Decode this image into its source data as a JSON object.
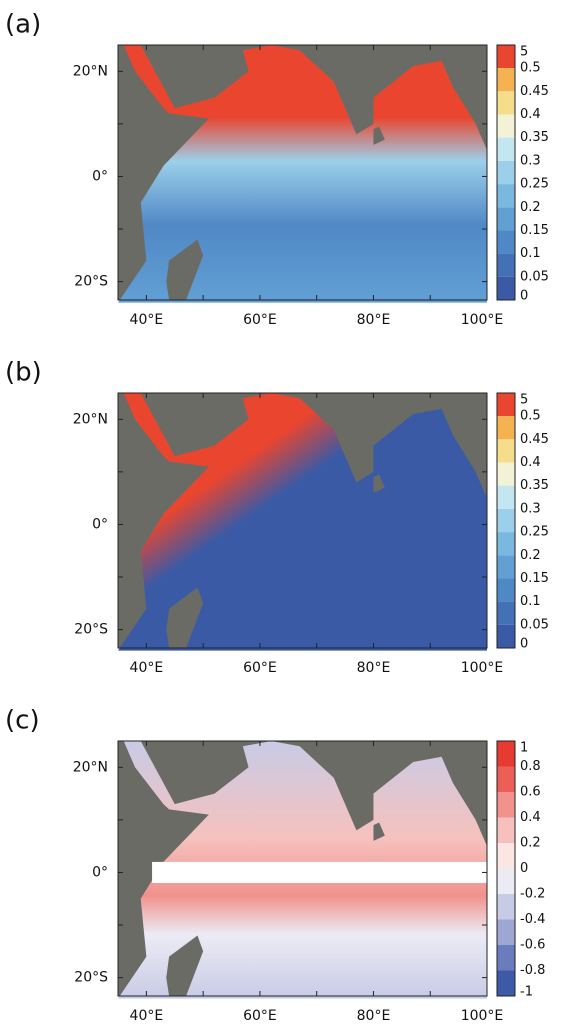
{
  "panels": [
    {
      "label": "(a)",
      "lat_labels": [
        "20°N",
        "0°",
        "20°S"
      ],
      "lon_labels": [
        "40°E",
        "60°E",
        "80°E",
        "100°E"
      ],
      "colorbar": {
        "labels": [
          "5",
          "0.5",
          "0.45",
          "0.4",
          "0.35",
          "0.3",
          "0.25",
          "0.2",
          "0.15",
          "0.1",
          "0.05",
          "0"
        ],
        "colors": [
          "#e9452f",
          "#f4b251",
          "#f6dd8c",
          "#f2f2d6",
          "#c4e6f1",
          "#9cd0ea",
          "#7ab8e0",
          "#62a0d4",
          "#5088c6",
          "#4470b6",
          "#3a5aa6"
        ]
      }
    },
    {
      "label": "(b)",
      "lat_labels": [
        "20°N",
        "0°",
        "20°S"
      ],
      "lon_labels": [
        "40°E",
        "60°E",
        "80°E",
        "100°E"
      ],
      "colorbar": {
        "labels": [
          "5",
          "0.5",
          "0.45",
          "0.4",
          "0.35",
          "0.3",
          "0.25",
          "0.2",
          "0.15",
          "0.1",
          "0.05",
          "0"
        ],
        "colors": [
          "#e9452f",
          "#f4b251",
          "#f6dd8c",
          "#f2f2d6",
          "#c4e6f1",
          "#9cd0ea",
          "#7ab8e0",
          "#62a0d4",
          "#5088c6",
          "#4470b6",
          "#3a5aa6"
        ]
      }
    },
    {
      "label": "(c)",
      "lat_labels": [
        "20°N",
        "0°",
        "20°S"
      ],
      "lon_labels": [
        "40°E",
        "60°E",
        "80°E",
        "100°E"
      ],
      "colorbar": {
        "labels": [
          "1",
          "0.8",
          "0.6",
          "0.4",
          "0.2",
          "0",
          "-0.2",
          "-0.4",
          "-0.6",
          "-0.8",
          "-1"
        ],
        "colors": [
          "#e63a33",
          "#ec5f57",
          "#f1928c",
          "#f6c1bd",
          "#fbe6e4",
          "#ecebf5",
          "#c8cbe6",
          "#9ea6d4",
          "#6b7cbd",
          "#3c5aa6"
        ]
      }
    }
  ]
}
